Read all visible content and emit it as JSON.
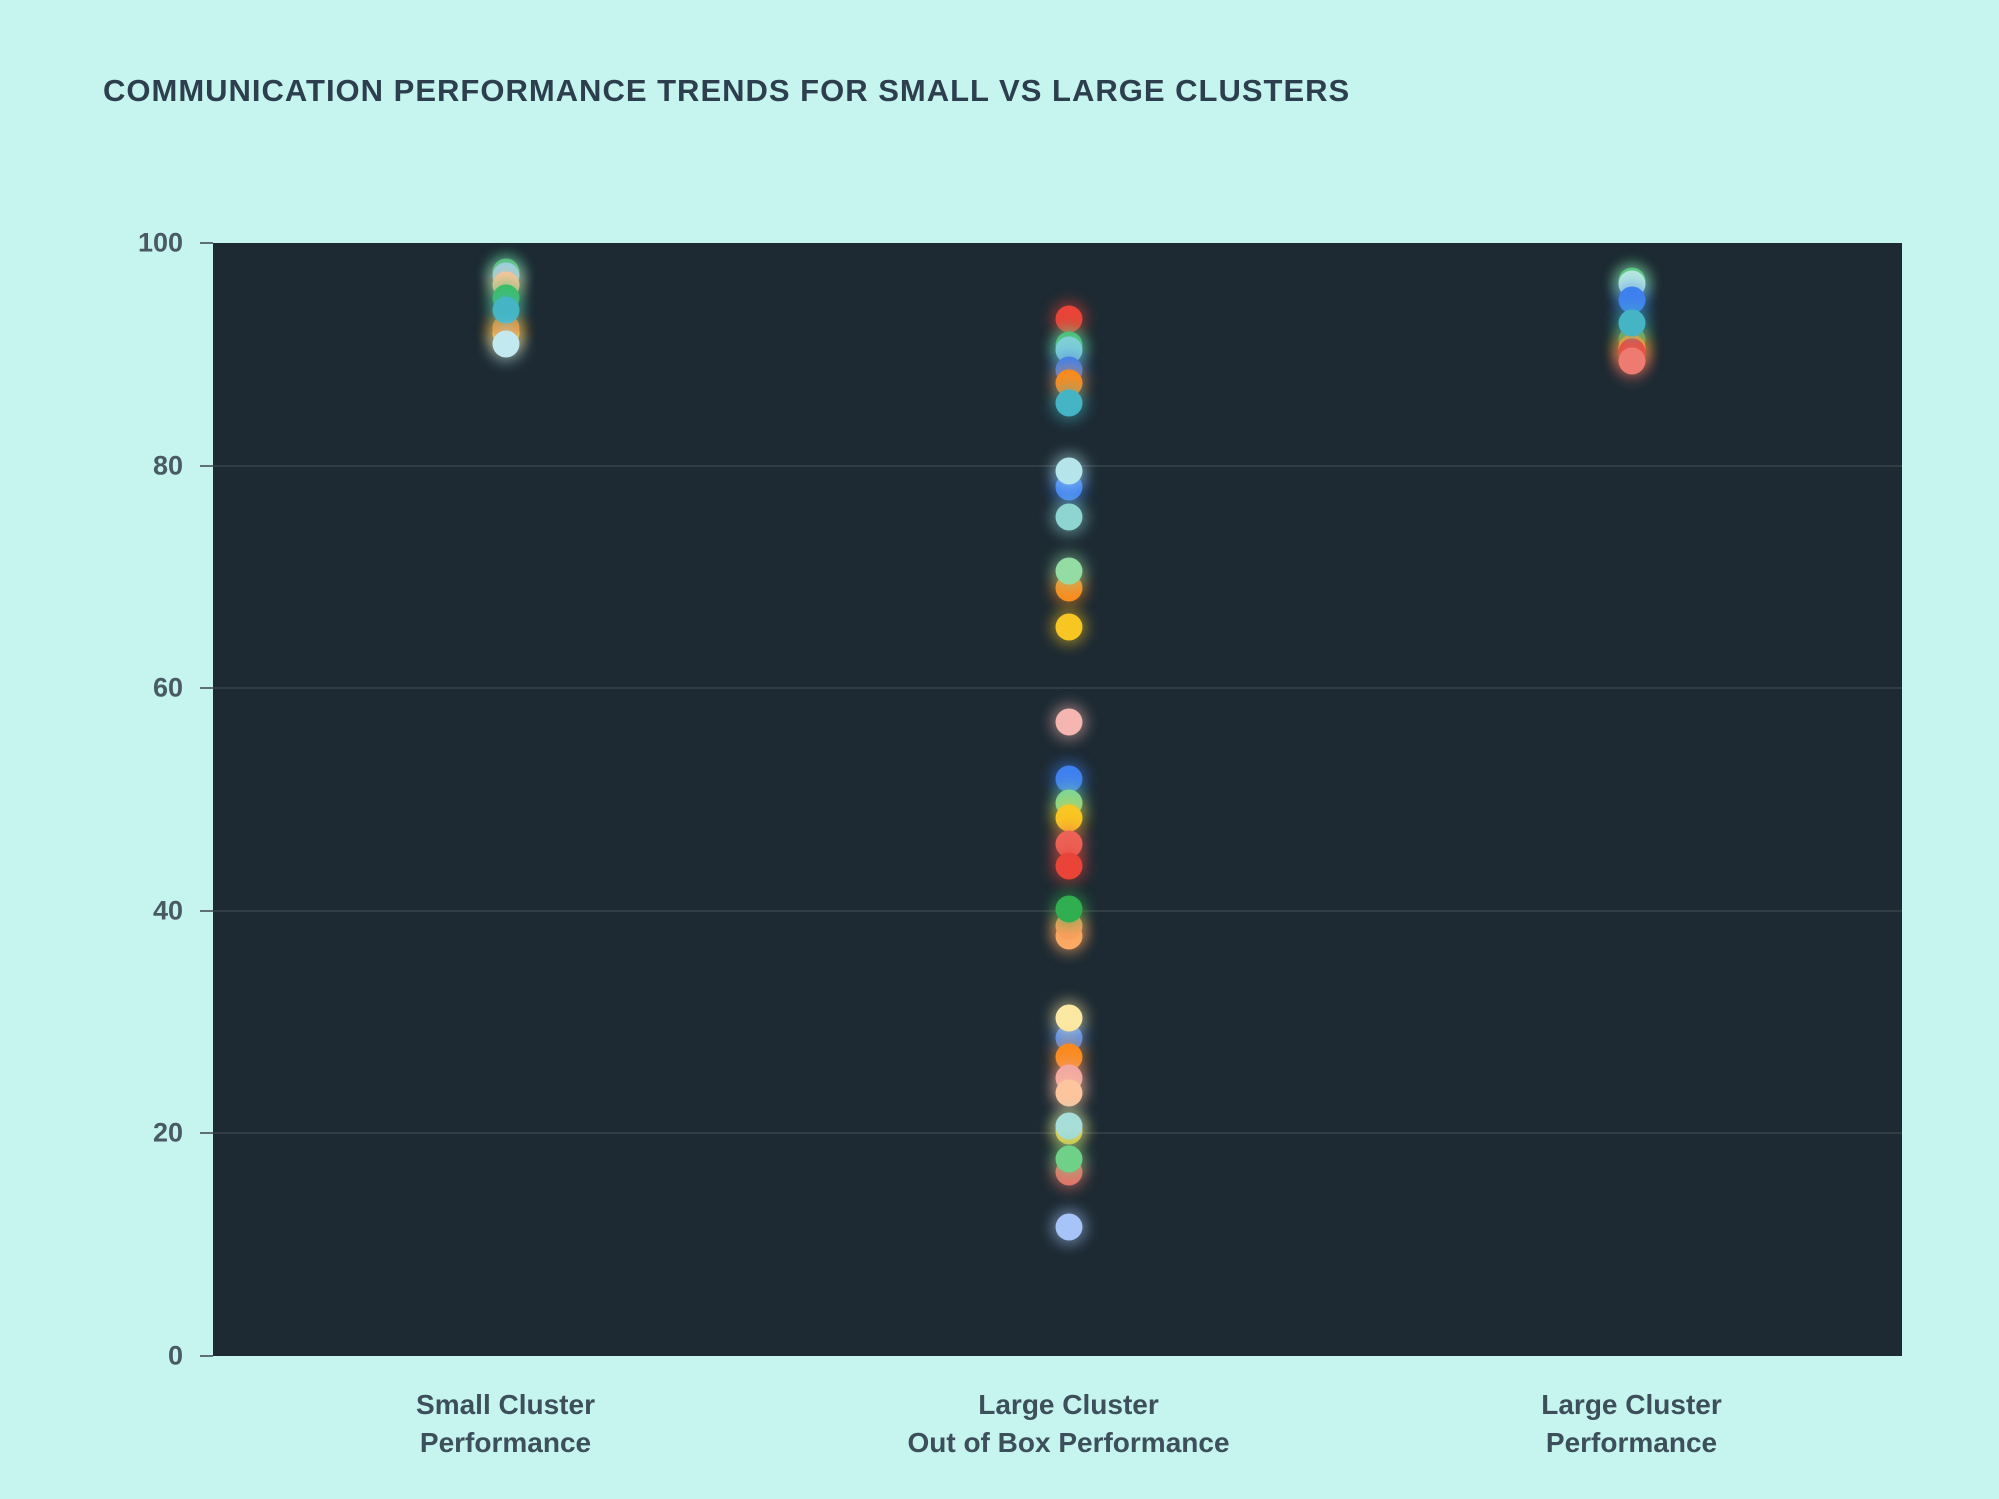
{
  "theme": {
    "page_bg": "#c6f4ee",
    "plot_bg": "#1d2a33",
    "grid_color": "rgba(255,255,255,0.09)",
    "title_color": "#2d3f4e",
    "tick_color": "#4a5a64",
    "tickmark_color": "#5f6f76",
    "category_label_color": "#3d4f5b"
  },
  "chart_data": {
    "type": "scatter",
    "title": "COMMUNICATION PERFORMANCE TRENDS FOR SMALL VS LARGE CLUSTERS",
    "xlabel": "",
    "ylabel": "",
    "ylim": [
      0,
      100
    ],
    "yticks": [
      0,
      20,
      40,
      60,
      80,
      100
    ],
    "grid": true,
    "legend": false,
    "marker_style": "round-glow",
    "categories": [
      {
        "label_lines": [
          "Small Cluster",
          "Performance"
        ],
        "points": [
          {
            "value": 97.4,
            "color": "#3dbd61"
          },
          {
            "value": 97.0,
            "color": "#8ed1e6"
          },
          {
            "value": 96.2,
            "color": "#fbc69d"
          },
          {
            "value": 95.1,
            "color": "#3dbd61"
          },
          {
            "value": 91.9,
            "color": "#f8c622"
          },
          {
            "value": 92.4,
            "color": "#fa8b1e"
          },
          {
            "value": 94.0,
            "color": "#45b5c6"
          },
          {
            "value": 90.9,
            "color": "#c2e8f0"
          }
        ]
      },
      {
        "label_lines": [
          "Large Cluster",
          "Out of Box Performance"
        ],
        "points": [
          {
            "value": 93.2,
            "color": "#e94437"
          },
          {
            "value": 90.8,
            "color": "#3dbd61"
          },
          {
            "value": 90.4,
            "color": "#7fd0d6"
          },
          {
            "value": 88.6,
            "color": "#3f80f0"
          },
          {
            "value": 87.4,
            "color": "#fa8b1e"
          },
          {
            "value": 85.6,
            "color": "#45b5c6"
          },
          {
            "value": 78.1,
            "color": "#3f80f0"
          },
          {
            "value": 79.5,
            "color": "#b5e5ea"
          },
          {
            "value": 75.4,
            "color": "#8ed5d2"
          },
          {
            "value": 69.0,
            "color": "#fa8b1e"
          },
          {
            "value": 70.5,
            "color": "#93dca3"
          },
          {
            "value": 65.5,
            "color": "#f8c622"
          },
          {
            "value": 57.0,
            "color": "#f5b6b1"
          },
          {
            "value": 51.8,
            "color": "#3f80f0"
          },
          {
            "value": 49.7,
            "color": "#7ed795"
          },
          {
            "value": 48.3,
            "color": "#f8c622"
          },
          {
            "value": 46.0,
            "color": "#ec6257"
          },
          {
            "value": 44.0,
            "color": "#e94437"
          },
          {
            "value": 37.7,
            "color": "#fcab66"
          },
          {
            "value": 38.6,
            "color": "#fba05c"
          },
          {
            "value": 40.2,
            "color": "#31ae50"
          },
          {
            "value": 28.6,
            "color": "#4d8df5"
          },
          {
            "value": 30.4,
            "color": "#fbe8a3"
          },
          {
            "value": 26.9,
            "color": "#fa8b1e"
          },
          {
            "value": 25.0,
            "color": "#f1a7a1"
          },
          {
            "value": 23.6,
            "color": "#fcc59e"
          },
          {
            "value": 20.2,
            "color": "#f8c622"
          },
          {
            "value": 20.7,
            "color": "#a8ded9"
          },
          {
            "value": 16.5,
            "color": "#e97068"
          },
          {
            "value": 17.7,
            "color": "#6fd187"
          },
          {
            "value": 11.6,
            "color": "#a6c4f8"
          }
        ]
      },
      {
        "label_lines": [
          "Large Cluster",
          "Performance"
        ],
        "points": [
          {
            "value": 96.6,
            "color": "#3dbd61"
          },
          {
            "value": 96.3,
            "color": "#b9e9df"
          },
          {
            "value": 94.9,
            "color": "#3f80f0"
          },
          {
            "value": 91.3,
            "color": "#3cb85c"
          },
          {
            "value": 90.6,
            "color": "#f8c622"
          },
          {
            "value": 90.2,
            "color": "#e94437"
          },
          {
            "value": 92.8,
            "color": "#45b5c6"
          },
          {
            "value": 89.4,
            "color": "#ee7b72"
          }
        ]
      }
    ]
  }
}
